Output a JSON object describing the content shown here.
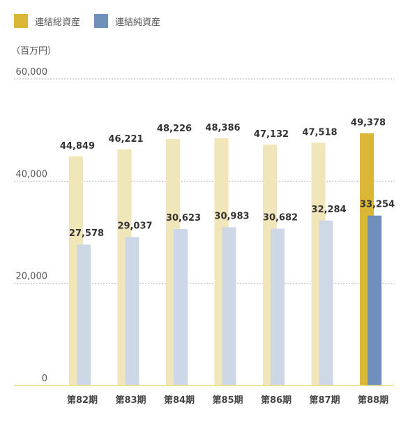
{
  "legend": {
    "series1": "連結総資産",
    "series2": "連結純資産"
  },
  "unit_label": "（百万円）",
  "colors": {
    "total_faded": "#f1e6b9",
    "total_highlight": "#dcb735",
    "net_faded": "#cdd7e5",
    "net_highlight": "#6e90bb",
    "grid": "#b5b5b5",
    "baseline": "#e9dd7a"
  },
  "chart_data": {
    "type": "bar",
    "categories": [
      "第82期",
      "第83期",
      "第84期",
      "第85期",
      "第86期",
      "第87期",
      "第88期"
    ],
    "series": [
      {
        "name": "連結総資産",
        "values": [
          44849,
          46221,
          48226,
          48386,
          47132,
          47518,
          49378
        ]
      },
      {
        "name": "連結純資産",
        "values": [
          27578,
          29037,
          30623,
          30983,
          30682,
          32284,
          33254
        ]
      }
    ],
    "value_labels": {
      "total": [
        "44,849",
        "46,221",
        "48,226",
        "48,386",
        "47,132",
        "47,518",
        "49,378"
      ],
      "net": [
        "27,578",
        "29,037",
        "30,623",
        "30,983",
        "30,682",
        "32,284",
        "33,254"
      ]
    },
    "yticks": [
      "0",
      "20,000",
      "40,000",
      "60,000"
    ],
    "ytick_values": [
      0,
      20000,
      40000,
      60000
    ],
    "ylim": [
      0,
      60000
    ],
    "grid": true,
    "highlight_index": 6,
    "legend_position": "top-left"
  }
}
